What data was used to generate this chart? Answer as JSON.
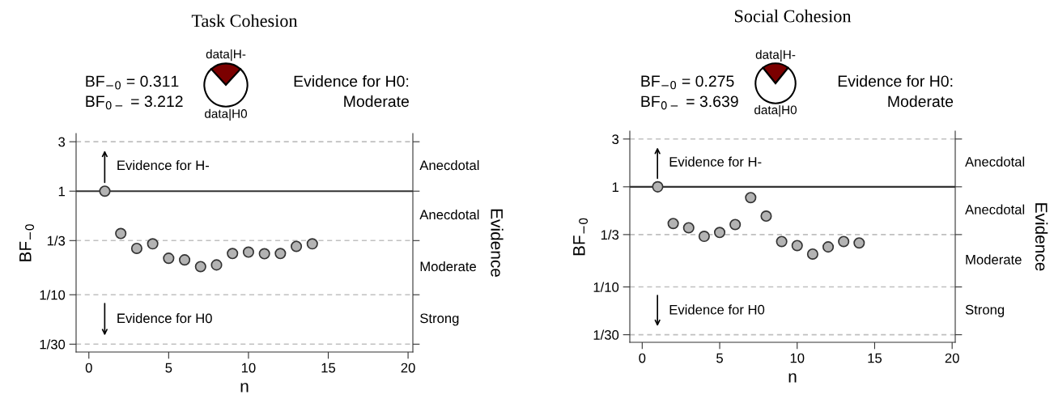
{
  "chart_data": [
    {
      "type": "scatter",
      "title": "Task Cohesion",
      "xlabel": "n",
      "ylabel": "BF$_{−0}$",
      "y2label": "Evidence",
      "x": [
        1,
        2,
        3,
        4,
        5,
        6,
        7,
        8,
        9,
        10,
        11,
        12,
        13,
        14
      ],
      "series": [
        {
          "color": "#b3b3b3",
          "values": [
            1,
            0.39,
            0.28,
            0.31,
            0.225,
            0.217,
            0.187,
            0.194,
            0.25,
            0.258,
            0.249,
            0.25,
            0.293,
            0.31
          ]
        }
      ],
      "marker": "circle",
      "log": "y",
      "grid": false,
      "xlim": [
        -0.8,
        20.3
      ],
      "xticks": [
        0,
        5,
        10,
        15,
        20
      ],
      "ylim": [
        0.028,
        3.6
      ],
      "yticks": [
        {
          "value": 0.03333,
          "label": "1/30"
        },
        {
          "value": 0.1,
          "label": "1/10"
        },
        {
          "value": 0.3333,
          "label": "1/3"
        },
        1,
        3
      ],
      "ref_lines": [
        {
          "axis": "y",
          "value": 3,
          "color": "#c0c0c0",
          "line_style": "dashed"
        },
        {
          "axis": "y",
          "value": 1,
          "color": "#333333",
          "line_style": "solid"
        },
        {
          "axis": "y",
          "value": 0.3333,
          "color": "#c0c0c0",
          "line_style": "dashed"
        },
        {
          "axis": "y",
          "value": 0.1,
          "color": "#c0c0c0",
          "line_style": "dashed"
        },
        {
          "axis": "y",
          "value": 0.03333,
          "color": "#c0c0c0",
          "line_style": "dashed"
        }
      ],
      "annotations": [
        "BF$_{−0}$ = 0.311",
        "BF$_{0−}$ = 3.212",
        "Evidence for H0:",
        "Moderate",
        "Evidence for H-",
        "Evidence for H0",
        "Anecdotal",
        "Anecdotal",
        "Moderate",
        "Strong"
      ]
    },
    {
      "type": "pie",
      "categories": [
        "data|H-",
        "data|H0"
      ],
      "values": [
        23.7,
        76.3
      ],
      "colors": [
        "#7b0000",
        "#ffffff"
      ]
    },
    {
      "type": "scatter",
      "title": "Social Cohesion",
      "xlabel": "n",
      "ylabel": "BF$_{−0}$",
      "y2label": "Evidence",
      "x": [
        1,
        2,
        3,
        4,
        5,
        6,
        7,
        8,
        9,
        10,
        11,
        12,
        13,
        14
      ],
      "series": [
        {
          "color": "#b3b3b3",
          "values": [
            1,
            0.43,
            0.39,
            0.32,
            0.35,
            0.42,
            0.78,
            0.51,
            0.284,
            0.259,
            0.213,
            0.251,
            0.284,
            0.275
          ]
        }
      ],
      "marker": "circle",
      "log": "y",
      "grid": false,
      "xlim": [
        -0.8,
        20.2
      ],
      "xticks": [
        0,
        5,
        10,
        15,
        20
      ],
      "ylim": [
        0.028,
        3.6
      ],
      "yticks": [
        {
          "value": 0.03333,
          "label": "1/30"
        },
        {
          "value": 0.1,
          "label": "1/10"
        },
        {
          "value": 0.3333,
          "label": "1/3"
        },
        1,
        3
      ],
      "ref_lines": [
        {
          "axis": "y",
          "value": 3,
          "color": "#c0c0c0",
          "line_style": "dashed"
        },
        {
          "axis": "y",
          "value": 1,
          "color": "#333333",
          "line_style": "solid"
        },
        {
          "axis": "y",
          "value": 0.3333,
          "color": "#c0c0c0",
          "line_style": "dashed"
        },
        {
          "axis": "y",
          "value": 0.1,
          "color": "#c0c0c0",
          "line_style": "dashed"
        },
        {
          "axis": "y",
          "value": 0.03333,
          "color": "#c0c0c0",
          "line_style": "dashed"
        }
      ],
      "annotations": [
        "BF$_{−0}$ = 0.275",
        "BF$_{0−}$ = 3.639",
        "Evidence for H0:",
        "Moderate",
        "Evidence for H-",
        "Evidence for H0",
        "Anecdotal",
        "Anecdotal",
        "Moderate",
        "Strong"
      ]
    },
    {
      "type": "pie",
      "categories": [
        "data|H-",
        "data|H0"
      ],
      "values": [
        21.6,
        78.4
      ],
      "colors": [
        "#7b0000",
        "#ffffff"
      ]
    }
  ]
}
